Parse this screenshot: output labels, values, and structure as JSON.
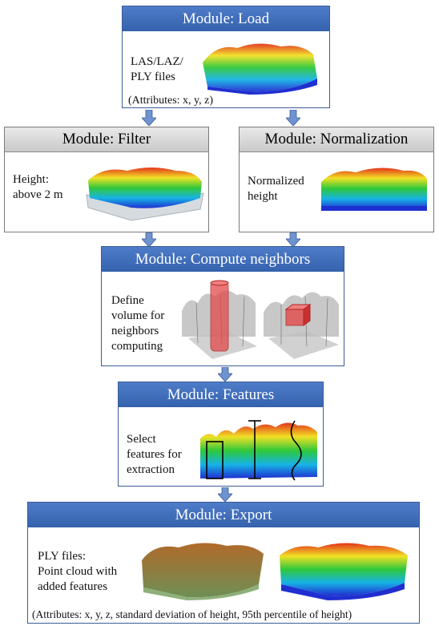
{
  "load": {
    "title": "Module: Load",
    "text_lines": [
      "LAS/LAZ/",
      "PLY files"
    ],
    "attributes": "(Attributes: x, y, z)"
  },
  "filter": {
    "title": "Module: Filter",
    "text_lines": [
      "Height:",
      "above 2 m"
    ]
  },
  "normalization": {
    "title": "Module: Normalization",
    "text_lines": [
      "Normalized",
      "height"
    ]
  },
  "neighbors": {
    "title": "Module: Compute neighbors",
    "text_lines": [
      "Define",
      "volume for",
      "neighbors",
      "computing"
    ]
  },
  "features": {
    "title": "Module: Features",
    "text_lines": [
      "Select",
      "features for",
      "extraction"
    ]
  },
  "export": {
    "title": "Module: Export",
    "text_lines": [
      "PLY files:",
      "Point cloud with",
      "added features"
    ],
    "attributes": "(Attributes: x, y, z, standard deviation of height, 95th percentile of height)"
  },
  "colors": {
    "blue_header": "#3f6bb8",
    "gray_header": "#d4d4d4",
    "arrow": "#6f93d0"
  }
}
